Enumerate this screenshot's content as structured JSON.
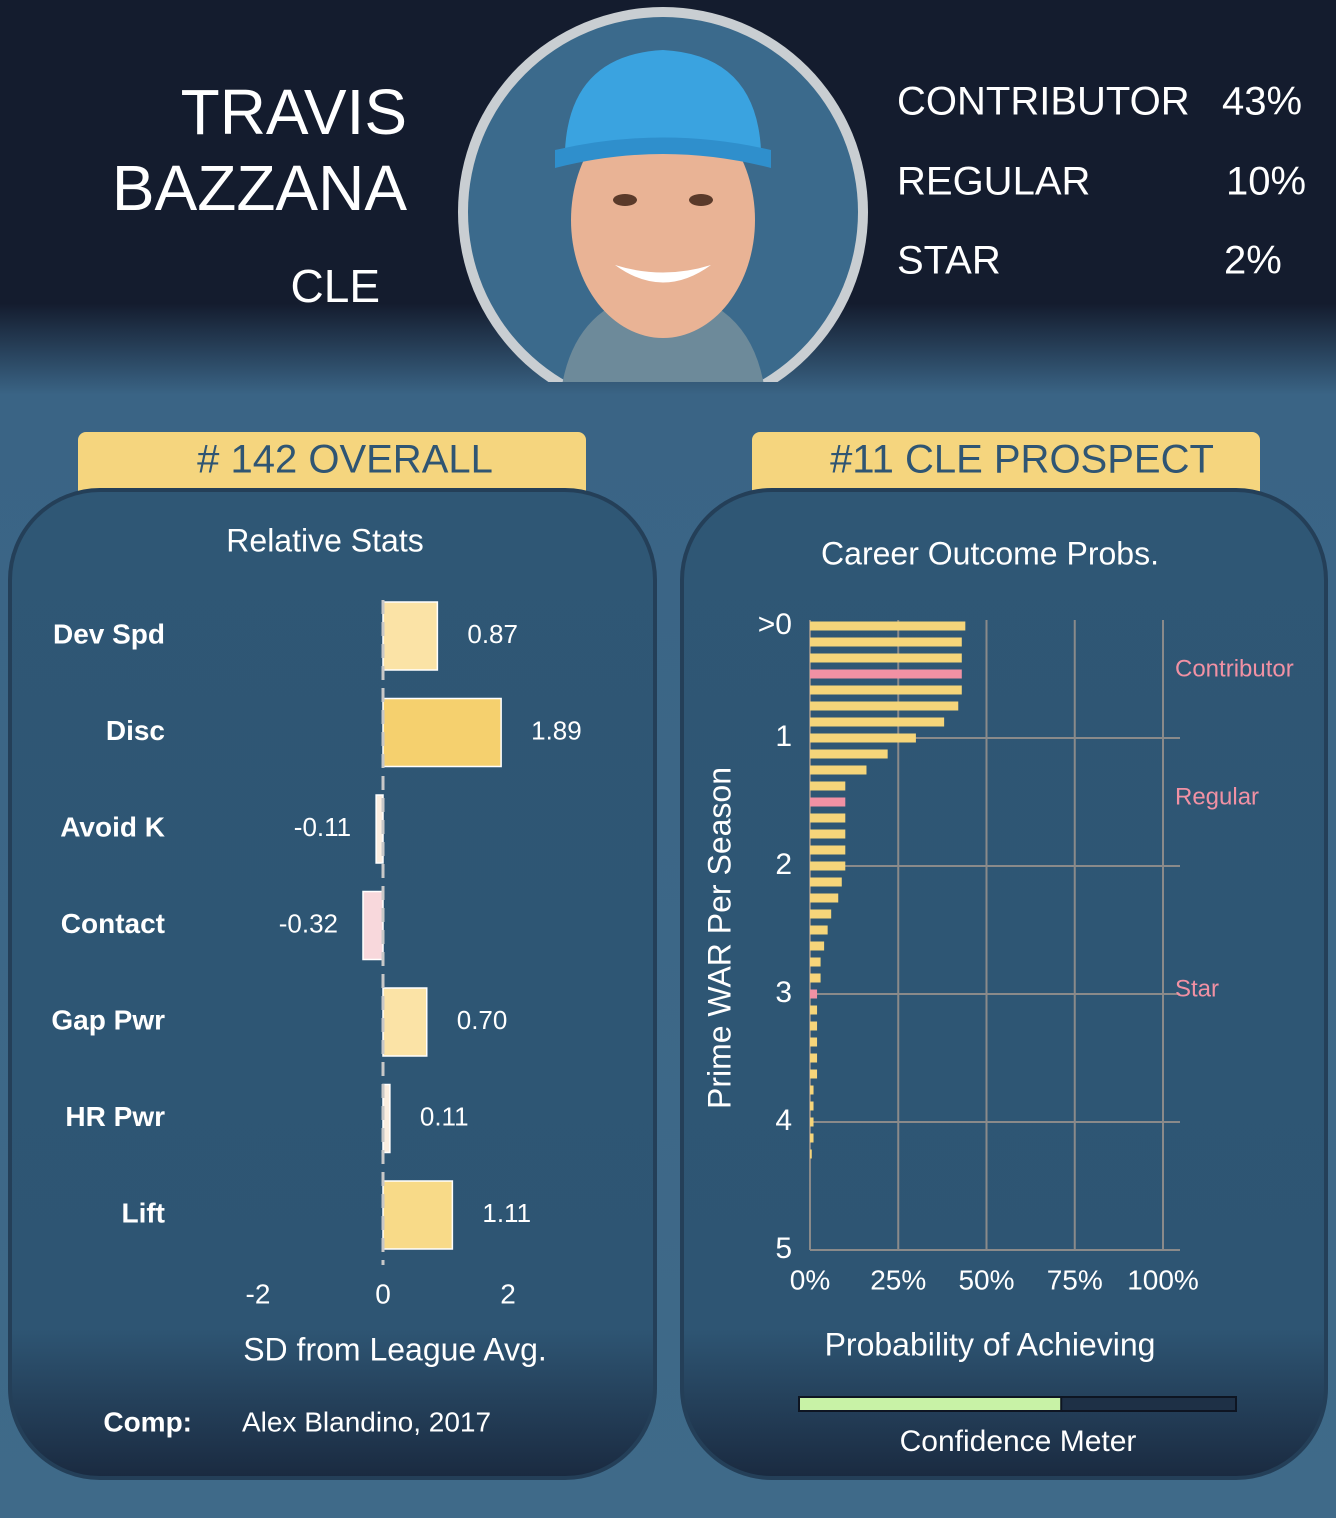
{
  "header": {
    "first_name": "TRAVIS",
    "last_name": "BAZZANA",
    "team": "CLE",
    "outcomes": [
      {
        "label": "CONTRIBUTOR",
        "value": "43%"
      },
      {
        "label": "REGULAR",
        "value": "10%"
      },
      {
        "label": "STAR",
        "value": "2%"
      }
    ]
  },
  "badges": [
    "# 142 OVERALL",
    "#11 CLE PROSPECT"
  ],
  "comp": {
    "label": "Comp:",
    "text": "Alex Blandino, 2017"
  },
  "confidence": {
    "label": "Confidence Meter",
    "value": 0.6,
    "color": "#c8f2a6"
  },
  "chart_data": [
    {
      "type": "bar",
      "orientation": "horizontal",
      "title": "Relative Stats",
      "xlabel": "SD from League Avg.",
      "categories": [
        "Dev Spd",
        "Disc",
        "Avoid K",
        "Contact",
        "Gap Pwr",
        "HR Pwr",
        "Lift"
      ],
      "values": [
        0.87,
        1.89,
        -0.11,
        -0.32,
        0.7,
        0.11,
        1.11
      ],
      "value_labels": [
        "0.87",
        "1.89",
        "-0.11",
        "-0.32",
        "0.70",
        "0.11",
        "1.11"
      ],
      "colors": [
        "#fbe3a6",
        "#f5d06e",
        "#fbeee0",
        "#f8d8dc",
        "#fbe3a6",
        "#fbeee0",
        "#f8da88"
      ],
      "xlim": [
        -2,
        2
      ],
      "xticks": [
        -2,
        0,
        2
      ]
    },
    {
      "type": "bar",
      "orientation": "horizontal",
      "title": "Career Outcome Probs.",
      "xlabel": "Probability of Achieving",
      "ylabel": "Prime WAR Per Season",
      "y": [
        0.125,
        0.25,
        0.375,
        0.5,
        0.625,
        0.75,
        0.875,
        1.0,
        1.125,
        1.25,
        1.375,
        1.5,
        1.625,
        1.75,
        1.875,
        2.0,
        2.125,
        2.25,
        2.375,
        2.5,
        2.625,
        2.75,
        2.875,
        3.0,
        3.125,
        3.25,
        3.375,
        3.5,
        3.625,
        3.75,
        3.875,
        4.0,
        4.125,
        4.25
      ],
      "values": [
        44,
        43,
        43,
        43,
        43,
        42,
        38,
        30,
        22,
        16,
        10,
        10,
        10,
        10,
        10,
        10,
        9,
        8,
        6,
        5,
        4,
        3,
        3,
        2,
        2,
        2,
        2,
        2,
        2,
        1,
        1,
        1,
        1,
        0.5
      ],
      "color": "#f5d57a",
      "annotations": [
        {
          "text": "Contributor",
          "y": 0.5,
          "color": "#f191a4"
        },
        {
          "text": "Regular",
          "y": 1.5,
          "color": "#f191a4"
        },
        {
          "text": "Star",
          "y": 3.0,
          "color": "#f191a4"
        }
      ],
      "xlim": [
        0,
        100
      ],
      "xticks": [
        {
          "value": 0,
          "label": "0%"
        },
        {
          "value": 25,
          "label": "25%"
        },
        {
          "value": 50,
          "label": "50%"
        },
        {
          "value": 75,
          "label": "75%"
        },
        {
          "value": 100,
          "label": "100%"
        }
      ],
      "ylim": [
        0,
        5
      ],
      "yticks": [
        {
          "value": 0,
          "label": ">0"
        },
        1,
        2,
        3,
        4,
        5
      ],
      "grid": true
    }
  ]
}
